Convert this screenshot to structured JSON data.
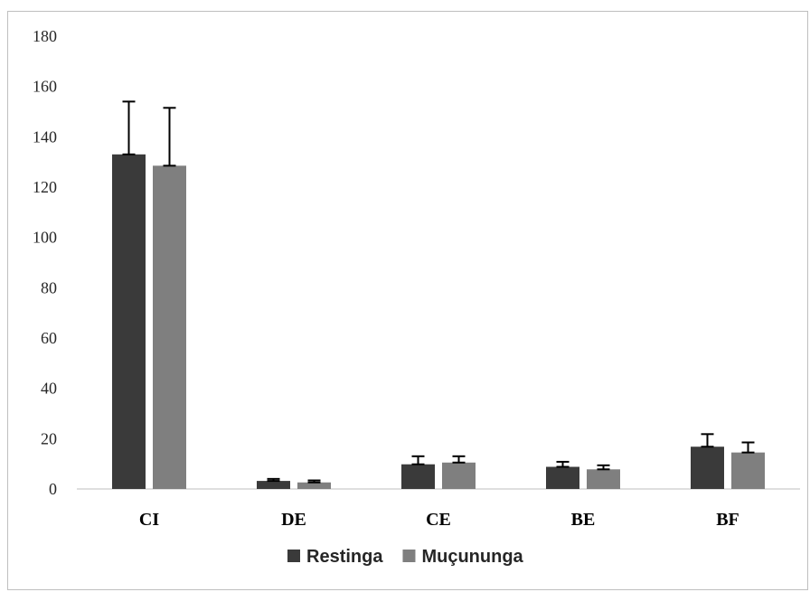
{
  "chart_data": {
    "type": "bar",
    "categories": [
      "CI",
      "DE",
      "CE",
      "BE",
      "BF"
    ],
    "series": [
      {
        "name": "Restinga",
        "color": "#3a3a3a",
        "values": [
          133,
          3.2,
          9.8,
          8.8,
          16.8
        ],
        "errors": [
          21,
          0.8,
          3.2,
          2.0,
          5.0
        ]
      },
      {
        "name": "Muçununga",
        "color": "#7f7f7f",
        "values": [
          128.5,
          2.6,
          10.5,
          7.8,
          14.5
        ],
        "errors": [
          23,
          0.8,
          2.5,
          1.6,
          4.0
        ]
      }
    ],
    "yticks": [
      0,
      20,
      40,
      60,
      80,
      100,
      120,
      140,
      160,
      180
    ],
    "ylim": [
      0,
      180
    ],
    "legend": {
      "position": "bottom"
    },
    "grid": false
  }
}
